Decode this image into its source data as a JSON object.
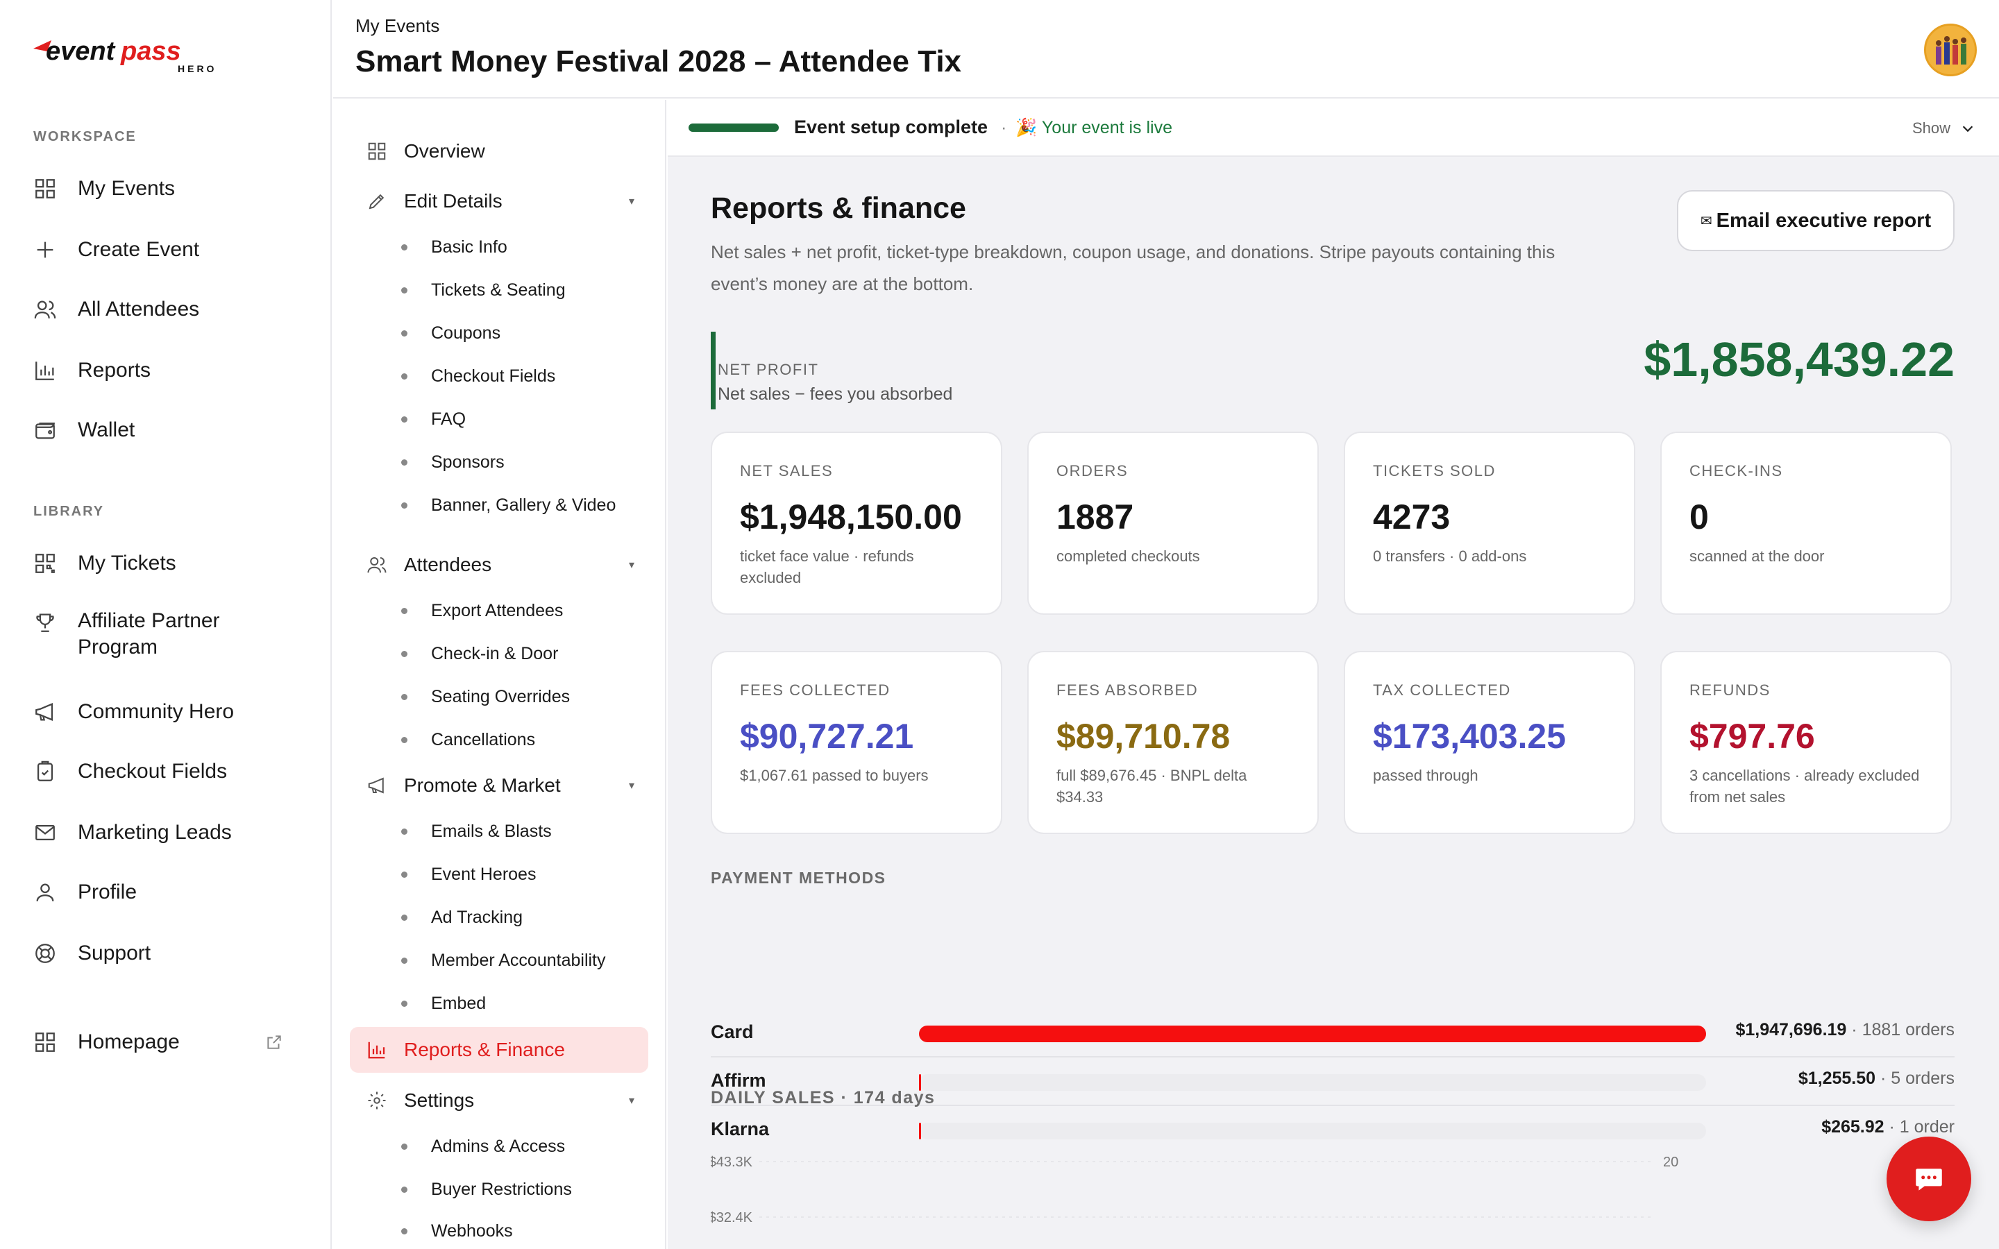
{
  "brand": {
    "name": "eventpass",
    "tag": "HERO",
    "accent": "#e01e1e"
  },
  "sidebar": {
    "workspace_label": "WORKSPACE",
    "library_label": "LIBRARY",
    "workspace": [
      {
        "label": "My Events",
        "icon": "grid-icon"
      },
      {
        "label": "Create Event",
        "icon": "plus-icon"
      },
      {
        "label": "All Attendees",
        "icon": "users-icon"
      },
      {
        "label": "Reports",
        "icon": "bar-chart-icon"
      },
      {
        "label": "Wallet",
        "icon": "wallet-icon"
      }
    ],
    "library": [
      {
        "label": "My Tickets",
        "icon": "qr-icon"
      },
      {
        "label": "Affiliate Partner Program",
        "icon": "trophy-icon"
      },
      {
        "label": "Community Hero",
        "icon": "megaphone-icon"
      },
      {
        "label": "Checkout Fields",
        "icon": "clipboard-icon"
      },
      {
        "label": "Marketing Leads",
        "icon": "mail-icon"
      },
      {
        "label": "Profile",
        "icon": "user-icon"
      },
      {
        "label": "Support",
        "icon": "lifebuoy-icon"
      }
    ],
    "homepage": {
      "label": "Homepage",
      "icon": "grid-icon"
    }
  },
  "header": {
    "breadcrumb": "My Events",
    "title": "Smart Money Festival 2028 – Attendee Tix"
  },
  "subnav": {
    "overview": "Overview",
    "edit_details": "Edit Details",
    "edit_children": [
      "Basic Info",
      "Tickets & Seating",
      "Coupons",
      "Checkout Fields",
      "FAQ",
      "Sponsors",
      "Banner, Gallery & Video"
    ],
    "attendees": "Attendees",
    "attendees_children": [
      "Export Attendees",
      "Check-in & Door",
      "Seating Overrides",
      "Cancellations"
    ],
    "promote": "Promote & Market",
    "promote_children": [
      "Emails & Blasts",
      "Event Heroes",
      "Ad Tracking",
      "Member Accountability",
      "Embed"
    ],
    "reports": "Reports & Finance",
    "settings": "Settings",
    "settings_children": [
      "Admins & Access",
      "Buyer Restrictions",
      "Webhooks"
    ]
  },
  "setup": {
    "status": "Event setup complete",
    "separator": "·",
    "live_emoji": "🎉",
    "live": "Your event is live",
    "toggle": "Show"
  },
  "reports": {
    "title": "Reports & finance",
    "description": "Net sales + net profit, ticket-type breakdown, coupon usage, and donations. Stripe payouts containing this event’s money are at the bottom.",
    "email_button": "Email executive report",
    "email_icon": "✉",
    "net_profit_label": "NET PROFIT",
    "net_profit_sub": "Net sales − fees you absorbed",
    "net_profit_value": "$1,858,439.22"
  },
  "cards": [
    {
      "label": "NET SALES",
      "value": "$1,948,150.00",
      "sub": "ticket face value · refunds excluded",
      "color": "#151515"
    },
    {
      "label": "ORDERS",
      "value": "1887",
      "sub": "completed checkouts",
      "color": "#151515"
    },
    {
      "label": "TICKETS SOLD",
      "value": "4273",
      "sub": "0 transfers · 0 add-ons",
      "color": "#151515"
    },
    {
      "label": "CHECK-INS",
      "value": "0",
      "sub": "scanned at the door",
      "color": "#151515"
    },
    {
      "label": "FEES COLLECTED",
      "value": "$90,727.21",
      "sub": "$1,067.61 passed to buyers",
      "color": "#4a4fc4"
    },
    {
      "label": "FEES ABSORBED",
      "value": "$89,710.78",
      "sub": "full $89,676.45 · BNPL delta $34.33",
      "color": "#8a6a12"
    },
    {
      "label": "TAX COLLECTED",
      "value": "$173,403.25",
      "sub": "passed through",
      "color": "#4a4fc4"
    },
    {
      "label": "REFUNDS",
      "value": "$797.76",
      "sub": "3 cancellations · already excluded from net sales",
      "color": "#b3122e"
    }
  ],
  "payment_methods": {
    "title": "PAYMENT METHODS",
    "rows": [
      {
        "name": "Card",
        "amount": "$1,947,696.19",
        "orders": "· 1881 orders",
        "share": 0.9998
      },
      {
        "name": "Affirm",
        "amount": "$1,255.50",
        "orders": "· 5 orders",
        "share": 0.0006
      },
      {
        "name": "Klarna",
        "amount": "$265.92",
        "orders": "· 1 order",
        "share": 0.0001
      }
    ]
  },
  "daily_sales": {
    "title": "DAILY SALES · 174 days"
  },
  "chart_data": {
    "type": "line",
    "title": "DAILY SALES · 174 days",
    "y_ticks": [
      "$43.3K",
      "$32.4K"
    ],
    "y2_ticks": [
      "20"
    ],
    "ylim": [
      0,
      43300
    ],
    "y2lim": [
      0,
      20
    ],
    "series": [],
    "colors": {
      "sales": "#f50f0f",
      "orders": "#4a4fc4"
    }
  }
}
